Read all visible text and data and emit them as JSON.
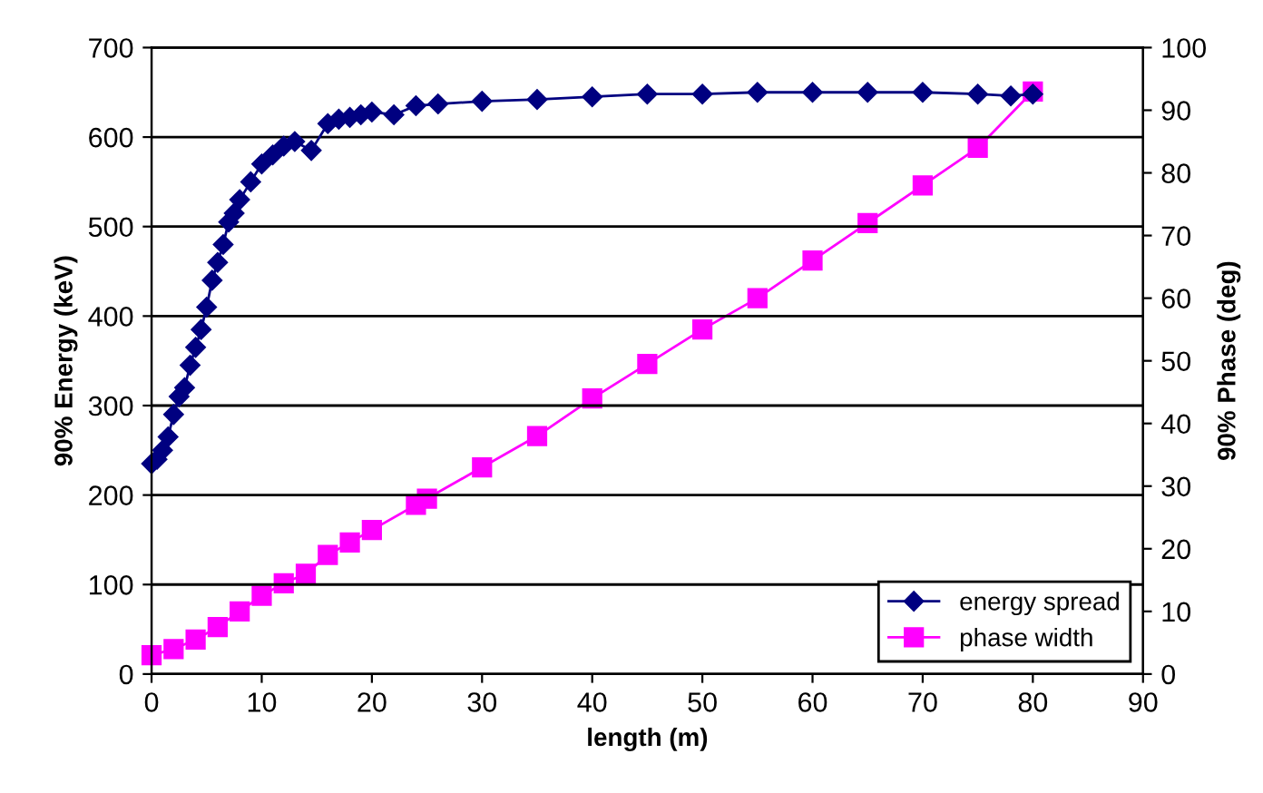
{
  "chart_data": {
    "type": "line",
    "xlabel": "length (m)",
    "ylabel": "90% Energy (keV)",
    "y2label": "90% Phase (deg)",
    "xlim": [
      0,
      90
    ],
    "xticks": [
      0,
      10,
      20,
      30,
      40,
      50,
      60,
      70,
      80,
      90
    ],
    "ylim": [
      0,
      700
    ],
    "yticks": [
      0,
      100,
      200,
      300,
      400,
      500,
      600,
      700
    ],
    "y2lim": [
      0,
      100
    ],
    "y2ticks": [
      0,
      10,
      20,
      30,
      40,
      50,
      60,
      70,
      80,
      90,
      100
    ],
    "grid": "y",
    "legend": "bottom right",
    "line_style": "solid",
    "series": [
      {
        "name": "energy spread",
        "color": "#000080",
        "marker": "diamond",
        "x": [
          0,
          0.5,
          1,
          1.5,
          2,
          2.5,
          3,
          3.5,
          4,
          4.5,
          5,
          5.5,
          6,
          6.5,
          7,
          7.5,
          8,
          9,
          10,
          11,
          12,
          13,
          14.5,
          16,
          17,
          18,
          19,
          20,
          22,
          24,
          26,
          30,
          35,
          40,
          45,
          50,
          55,
          60,
          65,
          70,
          75,
          78,
          80
        ],
        "values": [
          235,
          240,
          250,
          265,
          290,
          310,
          320,
          345,
          365,
          385,
          410,
          440,
          460,
          480,
          505,
          515,
          530,
          550,
          570,
          580,
          590,
          595,
          585,
          615,
          620,
          622,
          625,
          628,
          625,
          635,
          637,
          640,
          642,
          645,
          648,
          648,
          650,
          650,
          650,
          650,
          648,
          646,
          648
        ]
      },
      {
        "name": "phase width",
        "color": "#ff00ff",
        "marker": "square",
        "axis": "y2",
        "x": [
          0,
          2,
          4,
          6,
          8,
          10,
          12,
          14,
          16,
          18,
          20,
          24,
          25,
          30,
          35,
          40,
          45,
          50,
          55,
          60,
          65,
          70,
          75,
          80
        ],
        "values": [
          3,
          4,
          5.5,
          7.5,
          10,
          12.5,
          14.5,
          16,
          19,
          21,
          23,
          27,
          28,
          33,
          38,
          44,
          49.5,
          55,
          60,
          66,
          72,
          78,
          84,
          93
        ]
      }
    ]
  }
}
